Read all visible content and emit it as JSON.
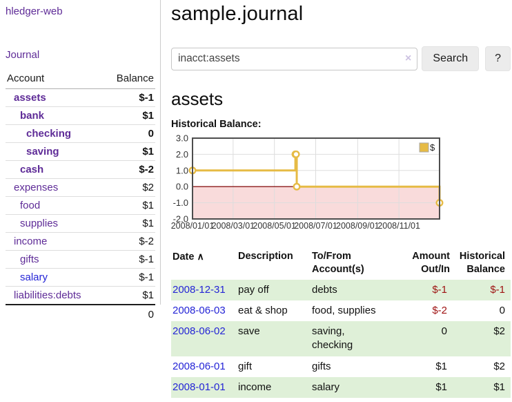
{
  "colors": {
    "purple": "#5e2b97",
    "blue-link": "#2424d6",
    "neg-strong": "#9e1111",
    "neg-muted": "#bd7e7e",
    "row-green": "#dff0d8",
    "gold": "#e6bb45",
    "zero-line": "#8b1a1a",
    "neg-region": "#f9dbdb",
    "chart-border": "#4d4d4d",
    "grid": "#dddddd",
    "btn-bg": "#ececec",
    "clear-x": "#cdc2e2"
  },
  "sidebar": {
    "brand": "hledger-web",
    "journal_link": "Journal",
    "accounts": {
      "headers": [
        "Account",
        "Balance"
      ],
      "rows": [
        {
          "name": "assets",
          "balance": "$-1",
          "depth_class": "d1",
          "row_class": "bold",
          "balance_class": "neg-strong",
          "name_class": ""
        },
        {
          "name": "bank",
          "balance": "$1",
          "depth_class": "d2",
          "row_class": "bold",
          "balance_class": "",
          "name_class": ""
        },
        {
          "name": "checking",
          "balance": "0",
          "depth_class": "d3",
          "row_class": "bold",
          "balance_class": "",
          "name_class": ""
        },
        {
          "name": "saving",
          "balance": "$1",
          "depth_class": "d3",
          "row_class": "bold",
          "balance_class": "",
          "name_class": ""
        },
        {
          "name": "cash",
          "balance": "$-2",
          "depth_class": "d2",
          "row_class": "bold",
          "balance_class": "neg-strong",
          "name_class": ""
        },
        {
          "name": "expenses",
          "balance": "$2",
          "depth_class": "d1",
          "row_class": "",
          "balance_class": "",
          "name_class": ""
        },
        {
          "name": "food",
          "balance": "$1",
          "depth_class": "d2",
          "row_class": "",
          "balance_class": "",
          "name_class": ""
        },
        {
          "name": "supplies",
          "balance": "$1",
          "depth_class": "d2",
          "row_class": "",
          "balance_class": "",
          "name_class": ""
        },
        {
          "name": "income",
          "balance": "$-2",
          "depth_class": "d1",
          "row_class": "",
          "balance_class": "neg-muted",
          "name_class": ""
        },
        {
          "name": "gifts",
          "balance": "$-1",
          "depth_class": "d2",
          "row_class": "",
          "balance_class": "neg-muted",
          "name_class": ""
        },
        {
          "name": "salary",
          "balance": "$-1",
          "depth_class": "d2",
          "row_class": "",
          "balance_class": "neg-muted",
          "name_class": "blue"
        },
        {
          "name": "liabilities:debts",
          "balance": "$1",
          "depth_class": "d1",
          "row_class": "",
          "balance_class": "",
          "name_class": ""
        }
      ],
      "total": "0"
    }
  },
  "header": {
    "title": "sample.journal"
  },
  "search": {
    "value": "inacct:assets",
    "clear_icon": "×",
    "search_button": "Search",
    "help_button": "?"
  },
  "account_page": {
    "heading": "assets",
    "chart_label": "Historical Balance:"
  },
  "chart_data": {
    "type": "line-step",
    "title": "Historical Balance",
    "legend": [
      {
        "label": "$",
        "color": "#e6bb45"
      }
    ],
    "series": [
      {
        "name": "$",
        "color": "#e6bb45",
        "points": [
          {
            "date": "2008-01-01",
            "value": 1
          },
          {
            "date": "2008-06-01",
            "value": 2
          },
          {
            "date": "2008-06-02",
            "value": 2
          },
          {
            "date": "2008-06-03",
            "value": 0
          },
          {
            "date": "2008-12-31",
            "value": -1
          }
        ]
      }
    ],
    "x_range": [
      "2008-01-01",
      "2008-12-31"
    ],
    "ylim": [
      -2,
      3
    ],
    "y_ticks": [
      "3.0",
      "2.0",
      "1.0",
      "0.0",
      "-1.0",
      "-2.0"
    ],
    "x_ticks": [
      {
        "label": "2008/01/01",
        "date": "2008-01-01"
      },
      {
        "label": "2008/03/01",
        "date": "2008-03-01"
      },
      {
        "label": "2008/05/01",
        "date": "2008-05-01"
      },
      {
        "label": "2008/07/01",
        "date": "2008-07-01"
      },
      {
        "label": "2008/09/01",
        "date": "2008-09-01"
      },
      {
        "label": "2008/11/01",
        "date": "2008-11-01"
      }
    ],
    "grid": true,
    "legend_position": "top-right",
    "negative_region_fill": "#f9dbdb",
    "zero_line_color": "#8b1a1a"
  },
  "register": {
    "columns": {
      "date": "Date",
      "description": "Description",
      "accounts": "To/From Account(s)",
      "amount": "Amount Out/In",
      "balance": "Historical Balance"
    },
    "sort_icon": "∧",
    "rows": [
      {
        "date": "2008-12-31",
        "description": "pay off",
        "accounts": "debts",
        "amount": "$-1",
        "balance": "$-1",
        "row_class": "green",
        "amount_class": "neg",
        "balance_class": "neg"
      },
      {
        "date": "2008-06-03",
        "description": "eat & shop",
        "accounts": "food, supplies",
        "amount": "$-2",
        "balance": "0",
        "row_class": "",
        "amount_class": "neg",
        "balance_class": ""
      },
      {
        "date": "2008-06-02",
        "description": "save",
        "accounts": "saving,\nchecking",
        "amount": "0",
        "balance": "$2",
        "row_class": "green",
        "amount_class": "",
        "balance_class": ""
      },
      {
        "date": "2008-06-01",
        "description": "gift",
        "accounts": "gifts",
        "amount": "$1",
        "balance": "$2",
        "row_class": "",
        "amount_class": "",
        "balance_class": ""
      },
      {
        "date": "2008-01-01",
        "description": "income",
        "accounts": "salary",
        "amount": "$1",
        "balance": "$1",
        "row_class": "green",
        "amount_class": "",
        "balance_class": ""
      }
    ]
  }
}
